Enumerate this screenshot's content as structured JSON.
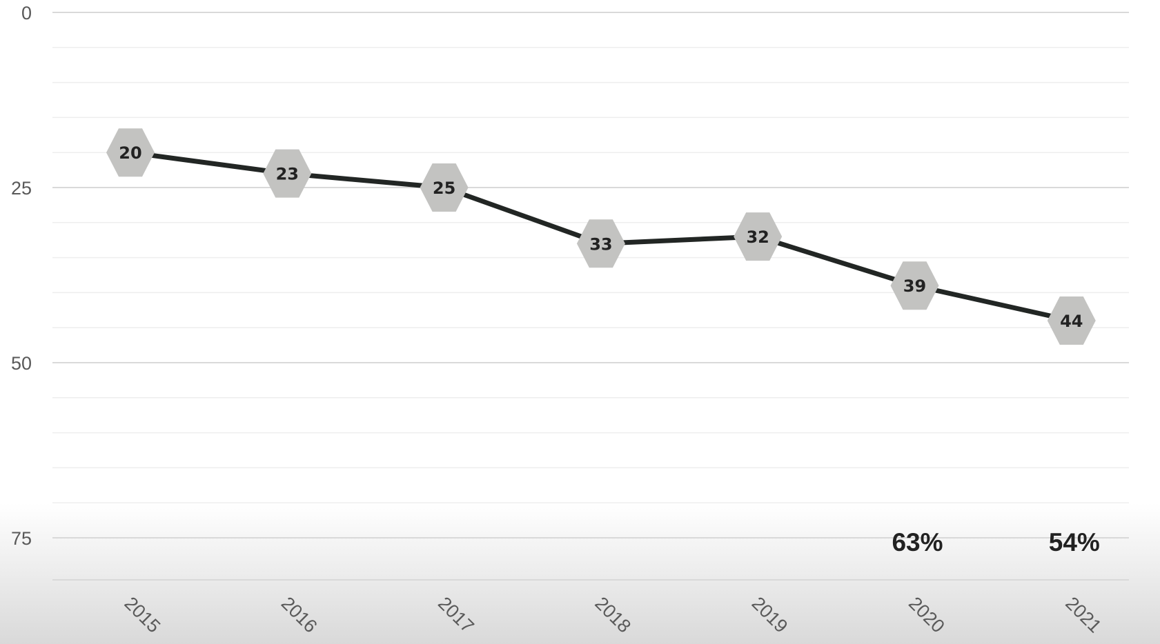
{
  "chart_data": {
    "type": "line",
    "x": [
      "2015",
      "2016",
      "2017",
      "2018",
      "2019",
      "2020",
      "2021"
    ],
    "series": [
      {
        "values": [
          20,
          23,
          25,
          33,
          32,
          39,
          44
        ]
      }
    ],
    "point_labels": [
      "20",
      "23",
      "25",
      "33",
      "32",
      "39",
      "44"
    ],
    "annotations": [
      {
        "x": "2020",
        "text": "63%"
      },
      {
        "x": "2021",
        "text": "54%"
      }
    ],
    "yticks": [
      "0",
      "25",
      "50",
      "75"
    ],
    "ylim": [
      0,
      81
    ],
    "y_inverted": true,
    "title": "",
    "xlabel": "",
    "ylabel": "",
    "grid": true,
    "legend": "none",
    "marker": "hexagon",
    "colors": {
      "line": "#222624",
      "marker": "#c3c3c1",
      "gridline_major": "#d9d9d9",
      "gridline_minor": "#eeeeee",
      "label": "#222222",
      "axis_text": "#595959"
    }
  }
}
